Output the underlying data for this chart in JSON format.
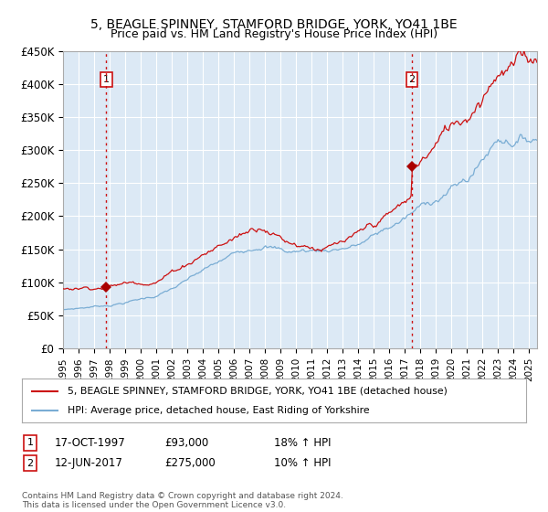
{
  "title": "5, BEAGLE SPINNEY, STAMFORD BRIDGE, YORK, YO41 1BE",
  "subtitle": "Price paid vs. HM Land Registry's House Price Index (HPI)",
  "ylim": [
    0,
    450000
  ],
  "yticks": [
    0,
    50000,
    100000,
    150000,
    200000,
    250000,
    300000,
    350000,
    400000,
    450000
  ],
  "xlim_start": 1995.0,
  "xlim_end": 2025.5,
  "hpi_color": "#7aadd4",
  "price_color": "#cc1111",
  "marker_color": "#aa0000",
  "plot_bg_color": "#dce9f5",
  "sale1_x": 1997.79,
  "sale1_y": 93000,
  "sale1_label": "1",
  "sale1_date": "17-OCT-1997",
  "sale1_price": "£93,000",
  "sale1_hpi": "18% ↑ HPI",
  "sale2_x": 2017.45,
  "sale2_y": 275000,
  "sale2_label": "2",
  "sale2_date": "12-JUN-2017",
  "sale2_price": "£275,000",
  "sale2_hpi": "10% ↑ HPI",
  "legend_line1": "5, BEAGLE SPINNEY, STAMFORD BRIDGE, YORK, YO41 1BE (detached house)",
  "legend_line2": "HPI: Average price, detached house, East Riding of Yorkshire",
  "footer": "Contains HM Land Registry data © Crown copyright and database right 2024.\nThis data is licensed under the Open Government Licence v3.0.",
  "background_color": "#ffffff",
  "grid_color": "#ffffff"
}
